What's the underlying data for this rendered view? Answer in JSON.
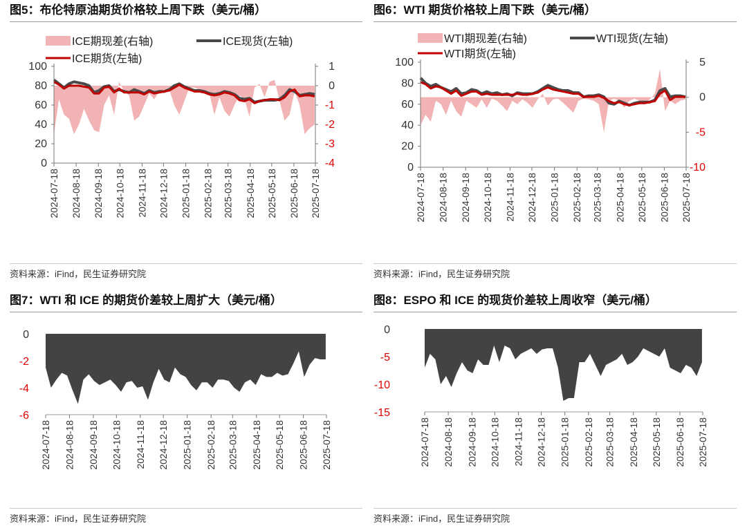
{
  "colors": {
    "spread_fill": "#f1b3b3",
    "spot_line": "#4a4a4a",
    "futures_line": "#c00000",
    "area_dark": "#434343",
    "right_axis_text": "#e00000",
    "left_axis_text": "#333333"
  },
  "charts": [
    {
      "panel_id": "fig5",
      "title": "图5：布伦特原油期货价格较上周下跌（美元/桶）",
      "source": "资料来源：iFind，民生证券研究院",
      "chart_data": {
        "type": "line",
        "x": [
          "2024-07-18",
          "2024-07-25",
          "2024-08-01",
          "2024-08-08",
          "2024-08-15",
          "2024-08-22",
          "2024-08-29",
          "2024-09-05",
          "2024-09-12",
          "2024-09-19",
          "2024-09-26",
          "2024-10-03",
          "2024-10-10",
          "2024-10-17",
          "2024-10-24",
          "2024-10-31",
          "2024-11-07",
          "2024-11-14",
          "2024-11-21",
          "2024-11-28",
          "2024-12-05",
          "2024-12-12",
          "2024-12-19",
          "2024-12-26",
          "2025-01-02",
          "2025-01-09",
          "2025-01-16",
          "2025-01-23",
          "2025-01-30",
          "2025-02-06",
          "2025-02-13",
          "2025-02-20",
          "2025-02-27",
          "2025-03-06",
          "2025-03-13",
          "2025-03-20",
          "2025-03-27",
          "2025-04-03",
          "2025-04-10",
          "2025-04-17",
          "2025-04-24",
          "2025-05-01",
          "2025-05-08",
          "2025-05-15",
          "2025-05-22",
          "2025-05-29",
          "2025-06-05",
          "2025-06-12",
          "2025-06-19",
          "2025-06-26",
          "2025-07-03",
          "2025-07-10",
          "2025-07-17"
        ],
        "x_tick_labels": [
          "2024-07-18",
          "2024-08-18",
          "2024-09-18",
          "2024-10-18",
          "2024-11-18",
          "2024-12-18",
          "2025-01-18",
          "2025-02-18",
          "2025-03-18",
          "2025-04-18",
          "2025-05-18",
          "2025-06-18",
          "2025-07-18"
        ],
        "series": [
          {
            "name": "ICE期现差(右轴)",
            "type": "area",
            "axis": "right",
            "values": [
              -2.5,
              -0.7,
              -1.5,
              -1.7,
              -2.5,
              -2.0,
              -1.2,
              -1.8,
              -2.3,
              -2.4,
              -1.0,
              -0.5,
              -1.5,
              0.2,
              -0.3,
              -0.5,
              -1.8,
              -1.6,
              -1.0,
              -0.4,
              -0.7,
              -0.3,
              -0.2,
              -0.2,
              -1.0,
              -1.5,
              -0.8,
              -0.1,
              -0.1,
              -0.2,
              -0.3,
              -0.4,
              -1.5,
              -0.6,
              -1.3,
              -1.6,
              -1.0,
              -0.5,
              -0.7,
              -1.6,
              -0.1,
              0.1,
              -0.6,
              0.2,
              0.3,
              -0.8,
              -1.8,
              -1.5,
              -0.3,
              -1.0,
              -2.5,
              -2.2,
              -2.0
            ]
          },
          {
            "name": "ICE现货(左轴)",
            "type": "line",
            "axis": "left",
            "values": [
              86,
              82,
              78,
              82,
              84,
              83,
              82,
              80,
              73,
              75,
              79,
              80,
              74,
              76,
              74,
              73,
              76,
              74,
              72,
              75,
              73,
              74,
              74,
              76,
              80,
              82,
              79,
              77,
              75,
              75,
              74,
              72,
              71,
              72,
              74,
              73,
              71,
              67,
              66,
              67,
              63,
              64,
              65,
              65,
              65,
              66,
              70,
              76,
              74,
              70,
              71,
              72,
              71
            ]
          },
          {
            "name": "ICE期货(左轴)",
            "type": "line",
            "axis": "left",
            "values": [
              84,
              81,
              77,
              80,
              80,
              80,
              79,
              78,
              72,
              72,
              78,
              79,
              73,
              77,
              73,
              73,
              73,
              73,
              71,
              74,
              72,
              73,
              74,
              75,
              78,
              81,
              78,
              76,
              74,
              74,
              73,
              71,
              70,
              71,
              73,
              72,
              70,
              65,
              64,
              66,
              62,
              64,
              65,
              66,
              66,
              65,
              68,
              74,
              76,
              69,
              70,
              70,
              69
            ]
          }
        ],
        "y_left": {
          "min": 0,
          "max": 100,
          "ticks": [
            0,
            20,
            40,
            60,
            80,
            100
          ]
        },
        "y_right": {
          "min": -4,
          "max": 1,
          "ticks": [
            -4,
            -3,
            -2,
            -1,
            0,
            1
          ]
        },
        "legend_rows": [
          [
            "ICE期现差(右轴)",
            "ICE现货(左轴)"
          ],
          [
            "ICE期货(左轴)"
          ]
        ],
        "legend_position": "top",
        "grid": false
      }
    },
    {
      "panel_id": "fig6",
      "title": "图6：WTI 期货价格较上周下跌（美元/桶）",
      "source": "资料来源：iFind，民生证券研究院",
      "chart_data": {
        "type": "line",
        "x": [
          "2024-07-18",
          "2024-07-25",
          "2024-08-01",
          "2024-08-08",
          "2024-08-15",
          "2024-08-22",
          "2024-08-29",
          "2024-09-05",
          "2024-09-12",
          "2024-09-19",
          "2024-09-26",
          "2024-10-03",
          "2024-10-10",
          "2024-10-17",
          "2024-10-24",
          "2024-10-31",
          "2024-11-07",
          "2024-11-14",
          "2024-11-21",
          "2024-11-28",
          "2024-12-05",
          "2024-12-12",
          "2024-12-19",
          "2024-12-26",
          "2025-01-02",
          "2025-01-09",
          "2025-01-16",
          "2025-01-23",
          "2025-01-30",
          "2025-02-06",
          "2025-02-13",
          "2025-02-20",
          "2025-02-27",
          "2025-03-06",
          "2025-03-13",
          "2025-03-20",
          "2025-03-27",
          "2025-04-03",
          "2025-04-10",
          "2025-04-17",
          "2025-04-24",
          "2025-05-01",
          "2025-05-08",
          "2025-05-15",
          "2025-05-22",
          "2025-05-29",
          "2025-06-05",
          "2025-06-12",
          "2025-06-19",
          "2025-06-26",
          "2025-07-03",
          "2025-07-10",
          "2025-07-17"
        ],
        "x_tick_labels": [
          "2024-07-18",
          "2024-08-18",
          "2024-09-18",
          "2024-10-18",
          "2024-11-18",
          "2024-12-18",
          "2025-01-18",
          "2025-02-18",
          "2025-03-18",
          "2025-04-18",
          "2025-05-18",
          "2025-06-18",
          "2025-07-18"
        ],
        "series": [
          {
            "name": "WTI期现差(右轴)",
            "type": "area",
            "axis": "right",
            "values": [
              -4,
              -2.5,
              -3.5,
              -0.5,
              -1.0,
              -2.5,
              -0.5,
              -2.0,
              -2.8,
              -0.5,
              -1.0,
              -1.5,
              -0.3,
              -1.5,
              -0.2,
              -0.5,
              -1.2,
              -2.0,
              -0.5,
              -1.0,
              -0.3,
              -0.8,
              -1.5,
              -0.3,
              0.5,
              -1.2,
              -0.3,
              -0.2,
              -0.8,
              -1.5,
              -2.2,
              -0.5,
              -0.2,
              -0.3,
              -0.5,
              -1.0,
              -5.0,
              -0.5,
              -0.2,
              -0.5,
              -1.5,
              -0.5,
              -0.2,
              -0.5,
              -1.0,
              -0.3,
              0.5,
              4.0,
              -2.0,
              -0.5,
              -1.0,
              -0.5,
              -0.3
            ]
          },
          {
            "name": "WTI现货(左轴)",
            "type": "line",
            "axis": "left",
            "values": [
              85,
              80,
              77,
              79,
              76,
              74,
              72,
              75,
              70,
              71,
              74,
              73,
              70,
              72,
              70,
              71,
              69,
              70,
              68,
              71,
              70,
              70,
              70,
              72,
              75,
              78,
              76,
              74,
              73,
              73,
              71,
              71,
              67,
              68,
              68,
              69,
              67,
              61,
              60,
              63,
              61,
              59,
              61,
              62,
              62,
              62,
              64,
              73,
              75,
              67,
              68,
              68,
              67
            ]
          },
          {
            "name": "WTI期货(左轴)",
            "type": "line",
            "axis": "left",
            "values": [
              81,
              79,
              75,
              77,
              76,
              73,
              70,
              73,
              68,
              70,
              72,
              72,
              69,
              70,
              69,
              69,
              69,
              69,
              69,
              70,
              69,
              69,
              70,
              71,
              74,
              76,
              74,
              73,
              72,
              71,
              70,
              70,
              67,
              67,
              67,
              68,
              66,
              63,
              61,
              62,
              60,
              59,
              60,
              61,
              61,
              62,
              63,
              70,
              73,
              64,
              67,
              67,
              67
            ]
          }
        ],
        "y_left": {
          "min": 0,
          "max": 100,
          "ticks": [
            0,
            20,
            40,
            60,
            80,
            100
          ]
        },
        "y_right": {
          "min": -10,
          "max": 5,
          "ticks": [
            -10,
            -5,
            0,
            5
          ]
        },
        "legend_rows": [
          [
            "WTI期现差(右轴)",
            "WTI现货(左轴)"
          ],
          [
            "WTI期货(左轴)"
          ]
        ],
        "legend_position": "top",
        "grid": false
      }
    },
    {
      "panel_id": "fig7",
      "title": "图7：WTI 和 ICE 的期货价差较上周扩大（美元/桶）",
      "source": "资料来源：iFind，民生证券研究院",
      "chart_data": {
        "type": "area",
        "x": [
          "2024-07-18",
          "2024-07-25",
          "2024-08-01",
          "2024-08-08",
          "2024-08-15",
          "2024-08-22",
          "2024-08-29",
          "2024-09-05",
          "2024-09-12",
          "2024-09-19",
          "2024-09-26",
          "2024-10-03",
          "2024-10-10",
          "2024-10-17",
          "2024-10-24",
          "2024-10-31",
          "2024-11-07",
          "2024-11-14",
          "2024-11-21",
          "2024-11-28",
          "2024-12-05",
          "2024-12-12",
          "2024-12-19",
          "2024-12-26",
          "2025-01-02",
          "2025-01-09",
          "2025-01-16",
          "2025-01-23",
          "2025-01-30",
          "2025-02-06",
          "2025-02-13",
          "2025-02-20",
          "2025-02-27",
          "2025-03-06",
          "2025-03-13",
          "2025-03-20",
          "2025-03-27",
          "2025-04-03",
          "2025-04-10",
          "2025-04-17",
          "2025-04-24",
          "2025-05-01",
          "2025-05-08",
          "2025-05-15",
          "2025-05-22",
          "2025-05-29",
          "2025-06-05",
          "2025-06-12",
          "2025-06-19",
          "2025-06-26",
          "2025-07-03",
          "2025-07-10",
          "2025-07-17"
        ],
        "x_tick_labels": [
          "2024-07-18",
          "2024-08-18",
          "2024-09-18",
          "2024-10-18",
          "2024-11-18",
          "2024-12-18",
          "2025-01-18",
          "2025-02-18",
          "2025-03-18",
          "2025-04-18",
          "2025-05-18",
          "2025-06-18",
          "2025-07-18"
        ],
        "series": [
          {
            "values": [
              -2.5,
              -4.0,
              -3.4,
              -2.9,
              -3.1,
              -4.2,
              -5.2,
              -3.4,
              -3.0,
              -3.5,
              -3.8,
              -3.6,
              -3.4,
              -3.8,
              -4.3,
              -3.6,
              -3.5,
              -4.0,
              -3.9,
              -4.9,
              -3.6,
              -2.6,
              -3.4,
              -3.6,
              -2.5,
              -3.0,
              -3.2,
              -3.8,
              -4.2,
              -3.6,
              -3.6,
              -4.0,
              -3.4,
              -3.4,
              -3.5,
              -4.0,
              -4.3,
              -3.6,
              -3.4,
              -3.8,
              -3.0,
              -3.2,
              -3.2,
              -2.9,
              -3.1,
              -3.0,
              -2.2,
              -1.3,
              -3.2,
              -2.3,
              -1.8,
              -1.9,
              -1.9
            ]
          }
        ],
        "y": {
          "min": -6,
          "max": 0,
          "ticks": [
            -6,
            -4,
            -2,
            0
          ]
        },
        "grid": false
      }
    },
    {
      "panel_id": "fig8",
      "title": "图8：ESPO 和 ICE 的现货价差较上周收窄（美元/桶）",
      "source": "资料来源：iFind，民生证券研究院",
      "chart_data": {
        "type": "area",
        "x": [
          "2024-07-18",
          "2024-07-25",
          "2024-08-01",
          "2024-08-08",
          "2024-08-15",
          "2024-08-22",
          "2024-08-29",
          "2024-09-05",
          "2024-09-12",
          "2024-09-19",
          "2024-09-26",
          "2024-10-03",
          "2024-10-10",
          "2024-10-17",
          "2024-10-24",
          "2024-10-31",
          "2024-11-07",
          "2024-11-14",
          "2024-11-21",
          "2024-11-28",
          "2024-12-05",
          "2024-12-12",
          "2024-12-19",
          "2024-12-26",
          "2025-01-02",
          "2025-01-09",
          "2025-01-16",
          "2025-01-23",
          "2025-01-30",
          "2025-02-06",
          "2025-02-13",
          "2025-02-20",
          "2025-02-27",
          "2025-03-06",
          "2025-03-13",
          "2025-03-20",
          "2025-03-27",
          "2025-04-03",
          "2025-04-10",
          "2025-04-17",
          "2025-04-24",
          "2025-05-01",
          "2025-05-08",
          "2025-05-15",
          "2025-05-22",
          "2025-05-29",
          "2025-06-05",
          "2025-06-12",
          "2025-06-19",
          "2025-06-26",
          "2025-07-03",
          "2025-07-10",
          "2025-07-17"
        ],
        "x_tick_labels": [
          "2024-07-18",
          "2024-08-18",
          "2024-09-18",
          "2024-10-18",
          "2024-11-18",
          "2024-12-18",
          "2025-01-18",
          "2025-02-18",
          "2025-03-18",
          "2025-04-18",
          "2025-05-18",
          "2025-06-18",
          "2025-07-18"
        ],
        "series": [
          {
            "values": [
              -7.0,
              -4.5,
              -5.5,
              -10.0,
              -8.5,
              -10.5,
              -8.0,
              -6.0,
              -7.5,
              -8.0,
              -5.5,
              -6.5,
              -6.5,
              -3.0,
              -6.0,
              -3.0,
              -3.5,
              -5.5,
              -4.5,
              -4.0,
              -3.5,
              -4.5,
              -3.7,
              -3.5,
              -3.5,
              -7.0,
              -13.0,
              -12.5,
              -12.5,
              -6.0,
              -6.0,
              -4.5,
              -6.5,
              -8.5,
              -6.5,
              -6.0,
              -5.5,
              -4.5,
              -6.5,
              -6.0,
              -5.0,
              -3.5,
              -4.0,
              -4.5,
              -5.0,
              -3.5,
              -7.0,
              -7.5,
              -8.0,
              -6.5,
              -7.0,
              -8.5,
              -6.0
            ]
          }
        ],
        "y": {
          "min": -15,
          "max": 0,
          "ticks": [
            -15,
            -10,
            -5,
            0
          ]
        },
        "grid": false
      }
    }
  ]
}
